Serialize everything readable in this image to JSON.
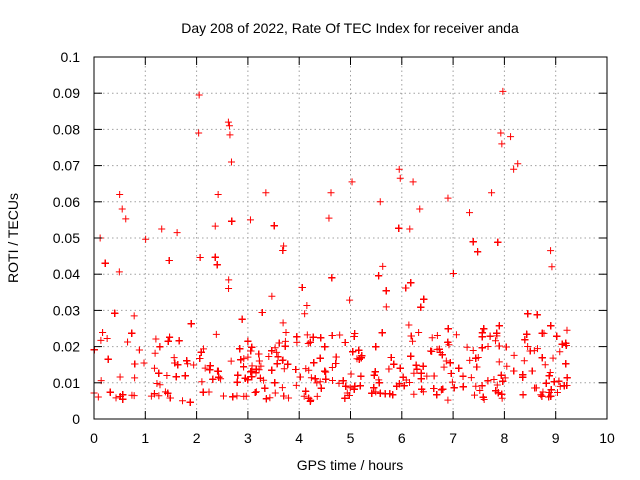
{
  "chart_data": {
    "type": "scatter",
    "title": "Day 208 of 2022, Rate Of TEC Index for receiver anda",
    "xlabel": "GPS time / hours",
    "ylabel": "ROTI / TECUs",
    "xlim": [
      0,
      10
    ],
    "ylim": [
      0,
      0.1
    ],
    "xticks": [
      "0",
      "1",
      "2",
      "3",
      "4",
      "5",
      "6",
      "7",
      "8",
      "9",
      "10"
    ],
    "yticks": [
      "0",
      "0.01",
      "0.02",
      "0.03",
      "0.04",
      "0.05",
      "0.06",
      "0.07",
      "0.08",
      "0.09",
      "0.1"
    ],
    "grid": true,
    "marker": "+",
    "color": "#ff0000",
    "x_range_of_data": [
      0.0,
      9.25
    ],
    "notable_points": [
      {
        "x": 2.05,
        "y": 0.0895
      },
      {
        "x": 2.04,
        "y": 0.079
      },
      {
        "x": 2.62,
        "y": 0.082
      },
      {
        "x": 2.64,
        "y": 0.081
      },
      {
        "x": 2.65,
        "y": 0.0785
      },
      {
        "x": 2.68,
        "y": 0.071
      },
      {
        "x": 3.35,
        "y": 0.0625
      },
      {
        "x": 4.62,
        "y": 0.0625
      },
      {
        "x": 5.03,
        "y": 0.0655
      },
      {
        "x": 5.58,
        "y": 0.06
      },
      {
        "x": 5.95,
        "y": 0.069
      },
      {
        "x": 5.97,
        "y": 0.0665
      },
      {
        "x": 6.22,
        "y": 0.0655
      },
      {
        "x": 6.9,
        "y": 0.061
      },
      {
        "x": 7.75,
        "y": 0.0625
      },
      {
        "x": 7.97,
        "y": 0.0905
      },
      {
        "x": 7.93,
        "y": 0.079
      },
      {
        "x": 7.95,
        "y": 0.076
      },
      {
        "x": 8.12,
        "y": 0.078
      },
      {
        "x": 8.26,
        "y": 0.0705
      },
      {
        "x": 8.18,
        "y": 0.069
      },
      {
        "x": 0.5,
        "y": 0.062
      },
      {
        "x": 0.55,
        "y": 0.058
      },
      {
        "x": 0.12,
        "y": 0.05
      },
      {
        "x": 1.32,
        "y": 0.0525
      },
      {
        "x": 1.62,
        "y": 0.0515
      },
      {
        "x": 2.42,
        "y": 0.062
      },
      {
        "x": 3.05,
        "y": 0.055
      },
      {
        "x": 4.58,
        "y": 0.0555
      },
      {
        "x": 6.35,
        "y": 0.058
      },
      {
        "x": 7.32,
        "y": 0.057
      },
      {
        "x": 8.9,
        "y": 0.0465
      },
      {
        "x": 9.22,
        "y": 0.0245
      }
    ],
    "envelope": {
      "x": [
        0.0,
        0.25,
        0.5,
        0.75,
        1.0,
        1.25,
        1.5,
        1.75,
        2.0,
        2.25,
        2.5,
        2.75,
        3.0,
        3.25,
        3.5,
        3.75,
        4.0,
        4.25,
        4.5,
        4.75,
        5.0,
        5.25,
        5.5,
        5.75,
        6.0,
        6.25,
        6.5,
        6.75,
        7.0,
        7.25,
        7.5,
        7.75,
        8.0,
        8.25,
        8.5,
        8.75,
        9.0,
        9.25
      ],
      "y_min": [
        0.006,
        0.006,
        0.005,
        0.006,
        0.006,
        0.005,
        0.005,
        0.005,
        0.004,
        0.006,
        0.006,
        0.006,
        0.006,
        0.006,
        0.005,
        0.005,
        0.004,
        0.005,
        0.006,
        0.005,
        0.005,
        0.006,
        0.006,
        0.006,
        0.006,
        0.006,
        0.005,
        0.005,
        0.005,
        0.005,
        0.005,
        0.005,
        0.005,
        0.005,
        0.005,
        0.006,
        0.006,
        0.005
      ],
      "y_typical_high": [
        0.03,
        0.035,
        0.04,
        0.032,
        0.03,
        0.028,
        0.03,
        0.025,
        0.03,
        0.035,
        0.04,
        0.036,
        0.035,
        0.04,
        0.038,
        0.028,
        0.027,
        0.03,
        0.035,
        0.034,
        0.035,
        0.033,
        0.03,
        0.035,
        0.04,
        0.038,
        0.032,
        0.035,
        0.036,
        0.033,
        0.035,
        0.04,
        0.038,
        0.033,
        0.03,
        0.028,
        0.027,
        0.02
      ]
    },
    "point_count": 3200
  }
}
